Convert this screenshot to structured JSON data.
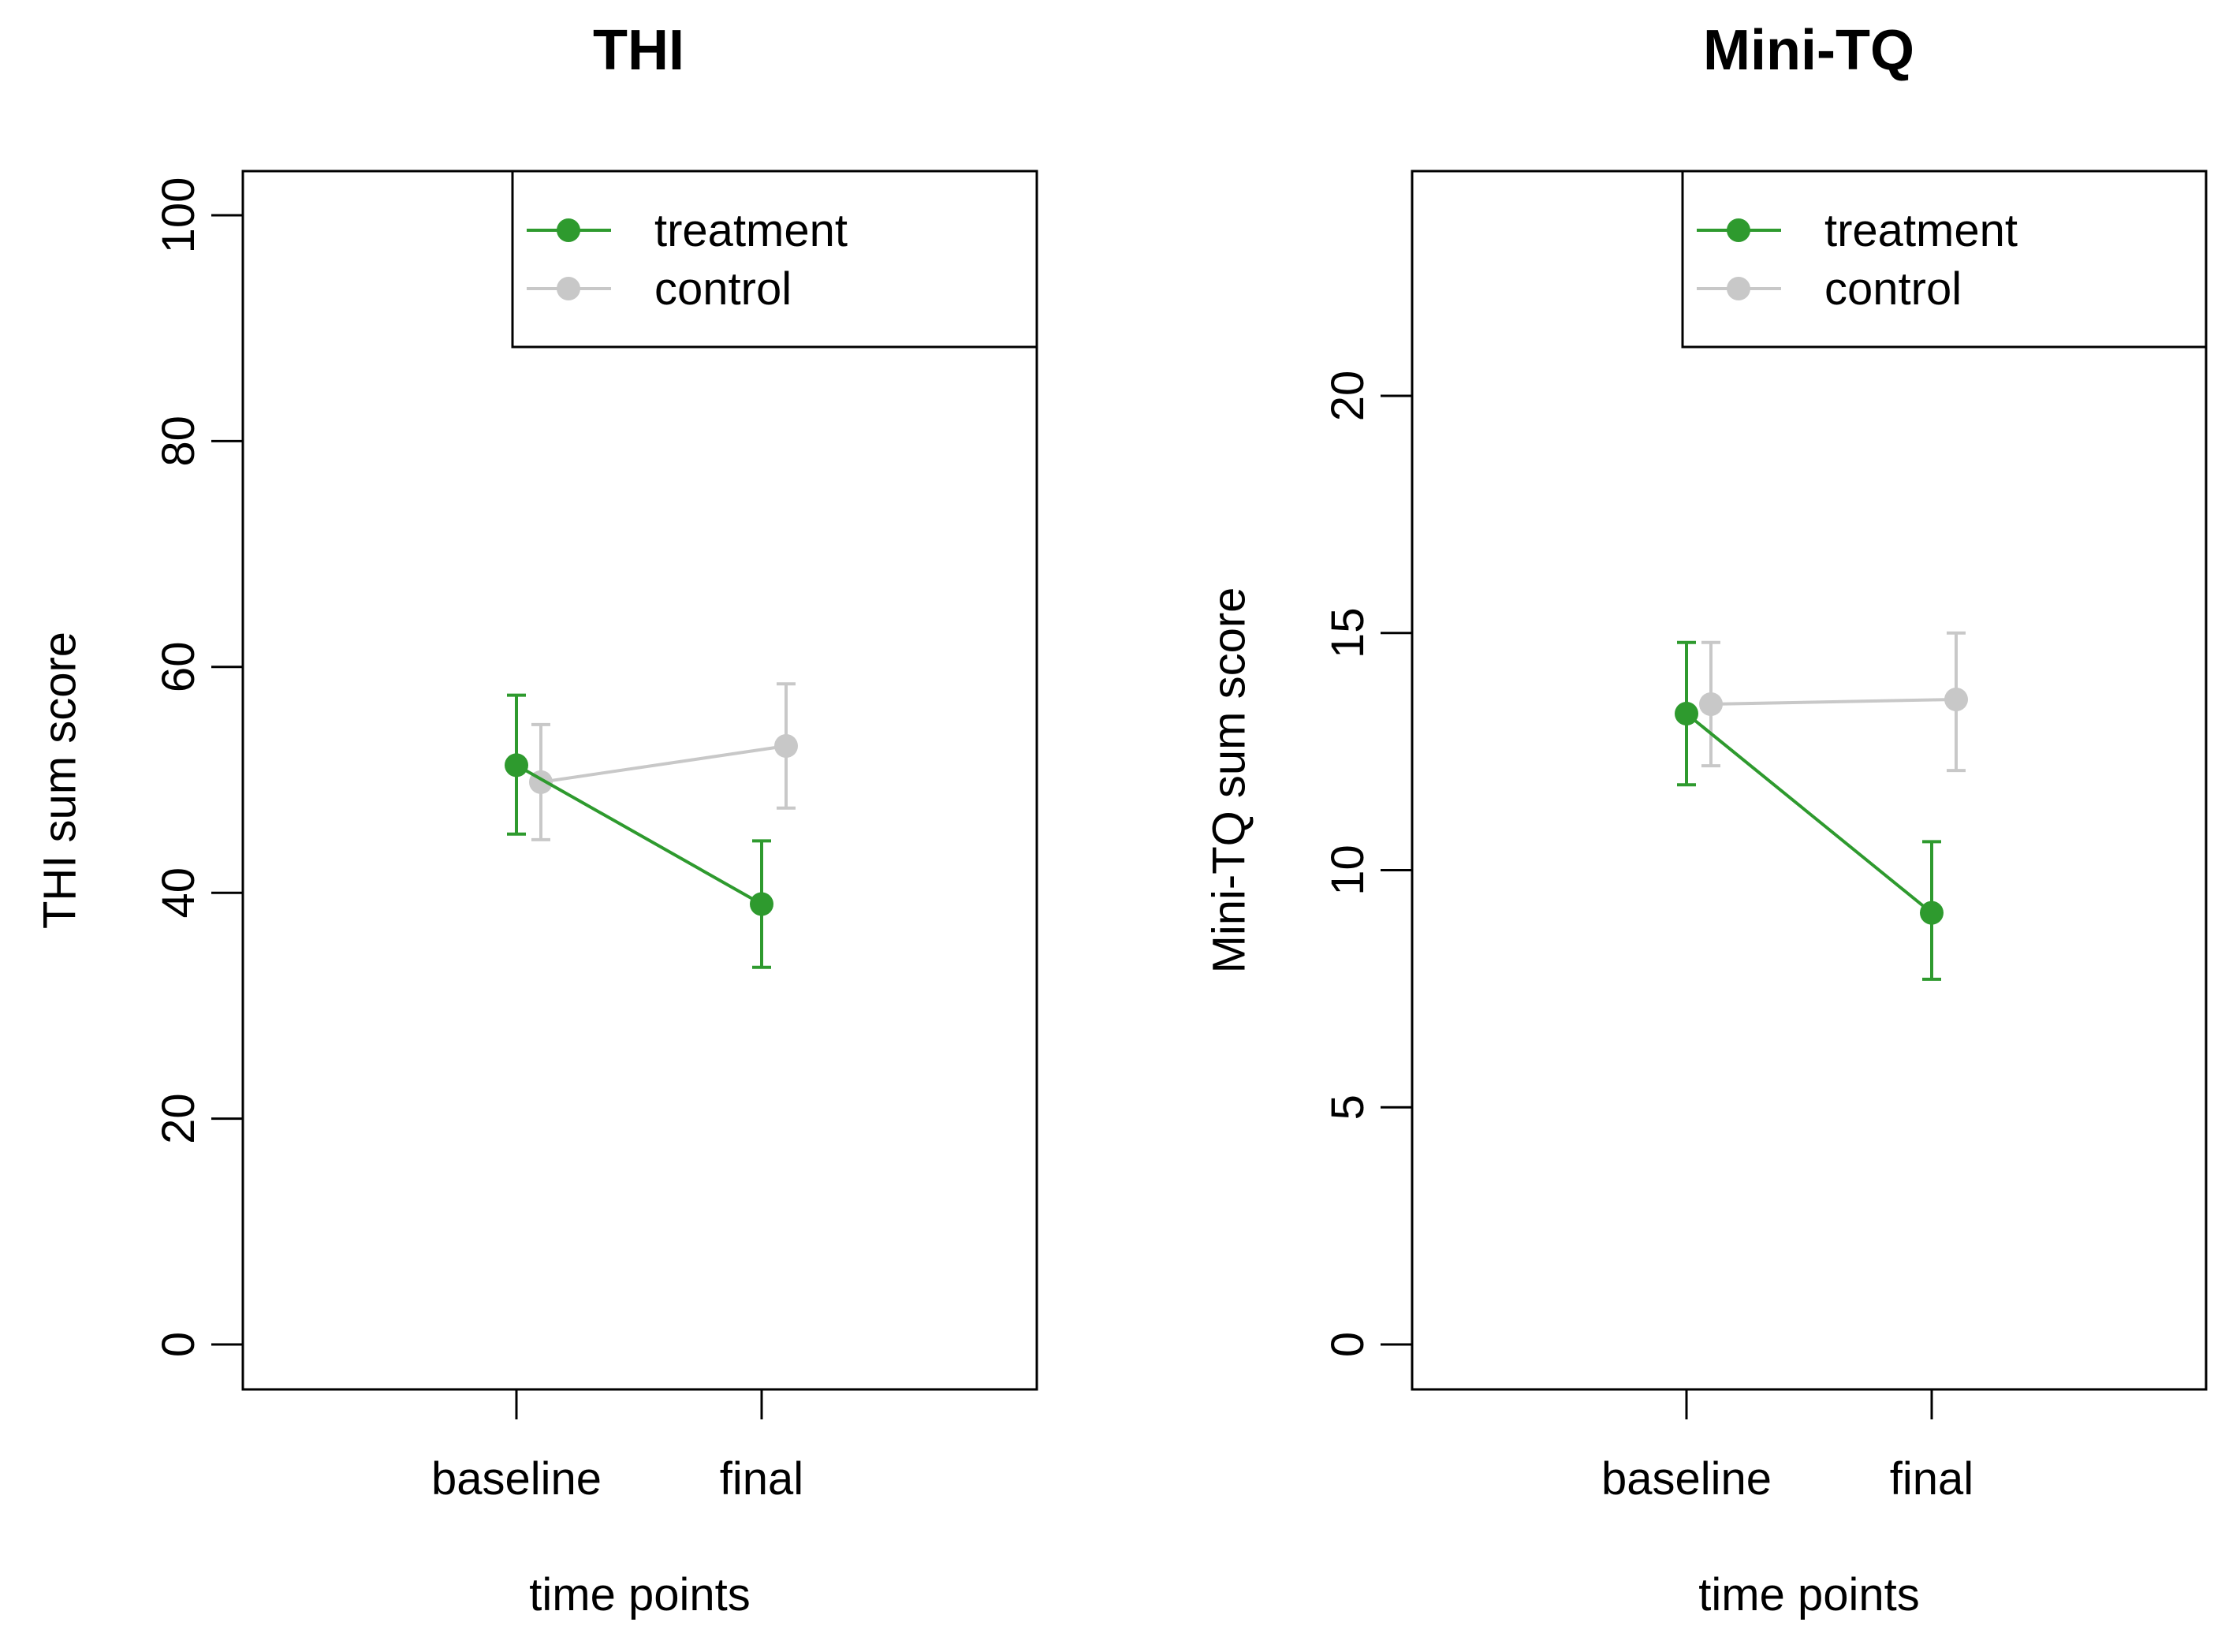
{
  "chart_data": [
    {
      "type": "line",
      "title": "THI",
      "xlabel": "time points",
      "ylabel": "THI sum score",
      "categories": [
        "baseline",
        "final"
      ],
      "ylim": [
        0,
        100
      ],
      "yticks": [
        0,
        20,
        40,
        60,
        80,
        100
      ],
      "grid": false,
      "legend_position": "top-right",
      "series": [
        {
          "name": "treatment",
          "color": "#2e9a2e",
          "values": [
            51.3,
            39.0
          ],
          "error_low": [
            45.2,
            33.4
          ],
          "error_high": [
            57.5,
            44.6
          ]
        },
        {
          "name": "control",
          "color": "#c8c8c8",
          "values": [
            49.8,
            53.0
          ],
          "error_low": [
            44.7,
            47.5
          ],
          "error_high": [
            54.9,
            58.5
          ]
        }
      ]
    },
    {
      "type": "line",
      "title": "Mini-TQ",
      "xlabel": "time points",
      "ylabel": "Mini-TQ sum score",
      "categories": [
        "baseline",
        "final"
      ],
      "ylim": [
        0,
        25
      ],
      "yticks": [
        0,
        5,
        10,
        15,
        20
      ],
      "grid": false,
      "legend_position": "top-right",
      "series": [
        {
          "name": "treatment",
          "color": "#2e9a2e",
          "values": [
            13.3,
            9.1
          ],
          "error_low": [
            11.8,
            7.7
          ],
          "error_high": [
            14.8,
            10.6
          ]
        },
        {
          "name": "control",
          "color": "#c8c8c8",
          "values": [
            13.5,
            13.6
          ],
          "error_low": [
            12.2,
            12.1
          ],
          "error_high": [
            14.8,
            15.0
          ]
        }
      ]
    }
  ]
}
